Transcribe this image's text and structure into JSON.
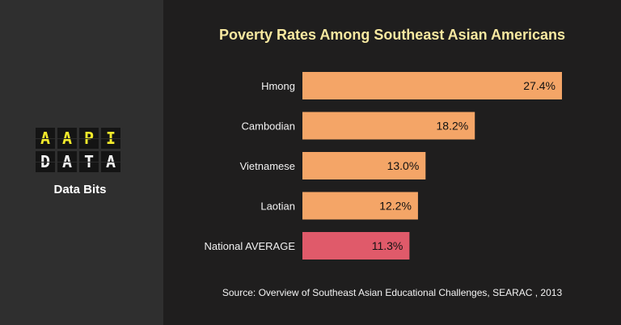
{
  "logo": {
    "row1": [
      "A",
      "A",
      "P",
      "I"
    ],
    "row2": [
      "D",
      "A",
      "T",
      "A"
    ],
    "subtitle": "Data Bits"
  },
  "source_text": "Source: Overview of Southeast Asian Educational Challenges, SEARAC , 2013",
  "colors": {
    "bar": "#f4a567",
    "highlight": "#e05a6a",
    "title": "#f7e8a0",
    "logo_yellow": "#f2ea2b"
  },
  "chart_data": {
    "type": "bar",
    "orientation": "horizontal",
    "title": "Poverty Rates Among Southeast Asian Americans",
    "categories": [
      "Hmong",
      "Cambodian",
      "Vietnamese",
      "Laotian",
      "National AVERAGE"
    ],
    "values": [
      27.4,
      18.2,
      13.0,
      12.2,
      11.3
    ],
    "value_labels": [
      "27.4%",
      "18.2%",
      "13.0%",
      "12.2%",
      "11.3%"
    ],
    "highlight_category": "National AVERAGE",
    "xlim": [
      0,
      27.4
    ],
    "grid": false,
    "legend": "none"
  }
}
